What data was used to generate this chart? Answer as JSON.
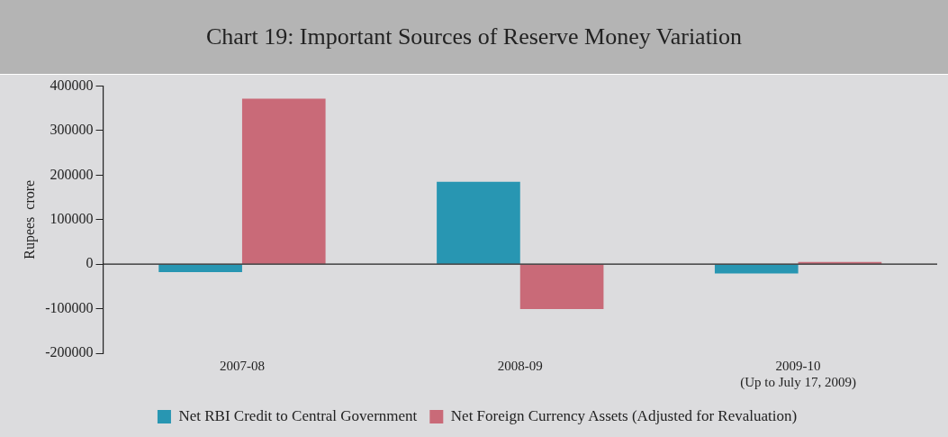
{
  "chart_data": {
    "type": "bar",
    "title": "Chart 19: Important Sources of Reserve Money Variation",
    "ylabel": "Rupees  crore",
    "categories": [
      "2007-08",
      "2008-09",
      "2009-10\n(Up to July 17, 2009)"
    ],
    "series": [
      {
        "name": "Net RBI Credit to Central Government",
        "color": "#2896b2",
        "values": [
          -18000,
          185000,
          -21000
        ]
      },
      {
        "name": "Net Foreign Currency Assets (Adjusted for Revaluation)",
        "color": "#c96a78",
        "values": [
          372000,
          -101000,
          5000
        ]
      }
    ],
    "ylim": [
      -200000,
      400000
    ],
    "yticks": [
      -200000,
      -100000,
      0,
      100000,
      200000,
      300000,
      400000
    ],
    "ref_lines": [
      {
        "axis": "y",
        "value": 0
      }
    ],
    "legend": "bottom"
  }
}
